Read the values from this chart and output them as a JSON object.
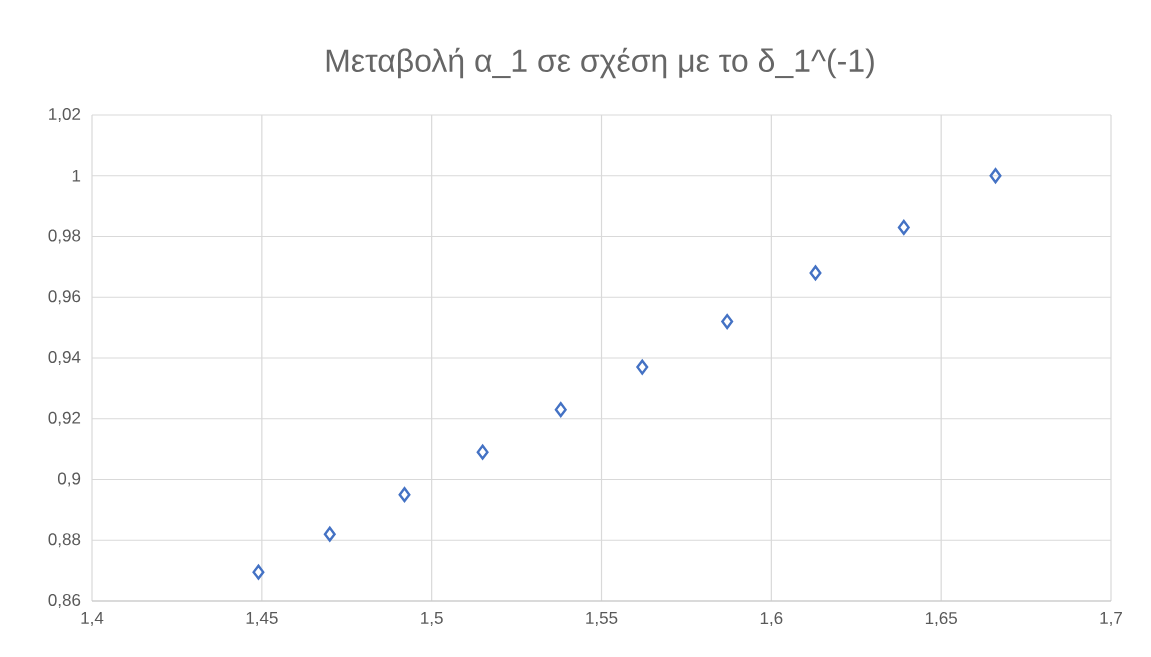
{
  "chart_data": {
    "type": "scatter",
    "title": "Μεταβολή α_1 σε σχέση με το δ_1^(-1)",
    "x": [
      1.449,
      1.47,
      1.492,
      1.515,
      1.538,
      1.562,
      1.587,
      1.613,
      1.639,
      1.666
    ],
    "values": [
      0.8695,
      0.882,
      0.895,
      0.909,
      0.923,
      0.937,
      0.952,
      0.968,
      0.983,
      1.0
    ],
    "color": "#4472c4",
    "marker": "diamond",
    "grid": true,
    "xlim": [
      1.4,
      1.7
    ],
    "xticks": [
      {
        "value": 1.4,
        "label": "1,4"
      },
      {
        "value": 1.45,
        "label": "1,45"
      },
      {
        "value": 1.5,
        "label": "1,5"
      },
      {
        "value": 1.55,
        "label": "1,55"
      },
      {
        "value": 1.6,
        "label": "1,6"
      },
      {
        "value": 1.65,
        "label": "1,65"
      },
      {
        "value": 1.7,
        "label": "1,7"
      }
    ],
    "ylim": [
      0.86,
      1.02
    ],
    "yticks": [
      {
        "value": 0.86,
        "label": "0,86"
      },
      {
        "value": 0.88,
        "label": "0,88"
      },
      {
        "value": 0.9,
        "label": "0,9"
      },
      {
        "value": 0.92,
        "label": "0,92"
      },
      {
        "value": 0.94,
        "label": "0,94"
      },
      {
        "value": 0.96,
        "label": "0,96"
      },
      {
        "value": 0.98,
        "label": "0,98"
      },
      {
        "value": 1,
        "label": "1"
      },
      {
        "value": 1.02,
        "label": "1,02"
      }
    ]
  }
}
